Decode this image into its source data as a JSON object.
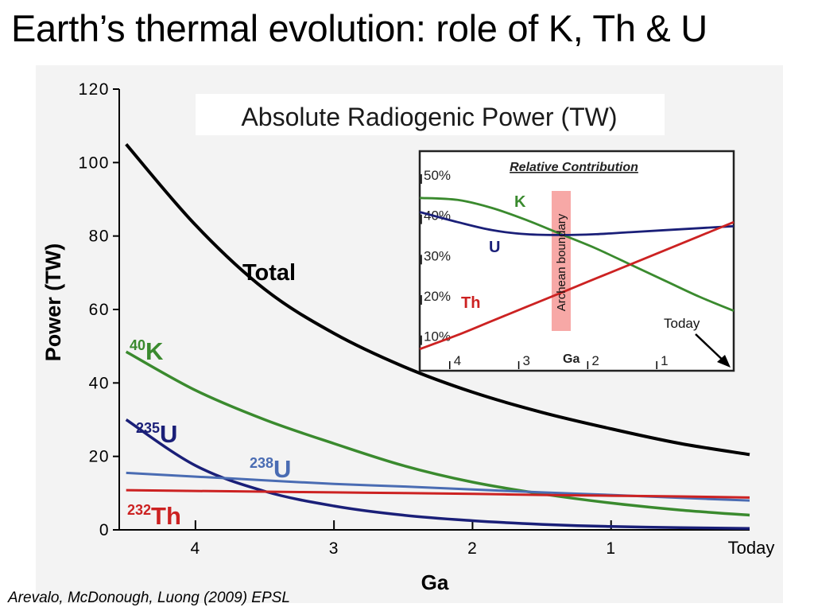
{
  "slide": {
    "title": "Earth’s thermal evolution: role of K, Th & U",
    "citation": "Arevalo, McDonough, Luong (2009) EPSL"
  },
  "chart_data": [
    {
      "type": "line",
      "title": "Absolute Radiogenic Power (TW)",
      "xlabel": "Ga",
      "ylabel": "Power (TW)",
      "xlim": [
        4.55,
        0
      ],
      "ylim": [
        0,
        120
      ],
      "x_ticks": [
        {
          "value": 4,
          "label": "4"
        },
        {
          "value": 3,
          "label": "3"
        },
        {
          "value": 2,
          "label": "2"
        },
        {
          "value": 1,
          "label": "1"
        },
        {
          "value": 0,
          "label": "Today"
        }
      ],
      "y_ticks": [
        0,
        20,
        40,
        60,
        80,
        100,
        120
      ],
      "x": [
        4.5,
        4.0,
        3.5,
        3.0,
        2.5,
        2.0,
        1.5,
        1.0,
        0.5,
        0.0
      ],
      "series": [
        {
          "name": "Total",
          "values": [
            105,
            83,
            65.5,
            53.5,
            44.5,
            37.5,
            32,
            27.5,
            23.5,
            20.5
          ],
          "color": "#000000"
        },
        {
          "name": "K",
          "superscript": "40",
          "values": [
            48.5,
            38,
            30,
            23.5,
            17.5,
            13,
            9.8,
            7.3,
            5.4,
            4
          ],
          "color": "#3a8a2e"
        },
        {
          "name": "U",
          "superscript": "235",
          "values": [
            30,
            17.5,
            10.5,
            6.5,
            4,
            2.5,
            1.5,
            0.9,
            0.6,
            0.4
          ],
          "color": "#1a1f78"
        },
        {
          "name": "U",
          "superscript": "238",
          "values": [
            15.5,
            14.5,
            13.5,
            12.5,
            11.8,
            11,
            10.2,
            9.5,
            8.7,
            8
          ],
          "color": "#4a6cb3"
        },
        {
          "name": "Th",
          "superscript": "232",
          "values": [
            10.8,
            10.6,
            10.4,
            10.2,
            10,
            9.8,
            9.5,
            9.3,
            9.1,
            8.8
          ],
          "color": "#cc2222"
        }
      ]
    },
    {
      "type": "line",
      "title": "Relative Contribution",
      "xlabel": "Ga",
      "xlim": [
        4.55,
        0
      ],
      "ylim": [
        5,
        55
      ],
      "x_ticks": [
        4,
        3,
        2,
        1
      ],
      "y_ticks": [
        {
          "value": 10,
          "label": "10%"
        },
        {
          "value": 20,
          "label": "20%"
        },
        {
          "value": 30,
          "label": "30%"
        },
        {
          "value": 40,
          "label": "40%"
        },
        {
          "value": 50,
          "label": "50%"
        }
      ],
      "x": [
        4.55,
        4.0,
        3.5,
        3.0,
        2.5,
        2.0,
        1.5,
        1.0,
        0.5,
        0.0
      ],
      "series": [
        {
          "name": "K",
          "values": [
            45.5,
            45,
            43,
            40,
            36.5,
            33,
            29,
            25,
            21,
            17.5
          ],
          "color": "#3a8a2e"
        },
        {
          "name": "U",
          "values": [
            42,
            39.5,
            37.5,
            36.5,
            36.3,
            36.5,
            37,
            37.5,
            38,
            38.5
          ],
          "color": "#1a1f78"
        },
        {
          "name": "Th",
          "values": [
            8,
            11.5,
            15,
            18.5,
            22,
            25.5,
            29,
            32.5,
            36,
            39.5
          ],
          "color": "#cc2222"
        }
      ],
      "annotations": [
        {
          "text": "Archean boundary",
          "x": 2.5,
          "highlight": "#f7a8a6"
        },
        {
          "text": "Today",
          "x": 0
        }
      ]
    }
  ]
}
